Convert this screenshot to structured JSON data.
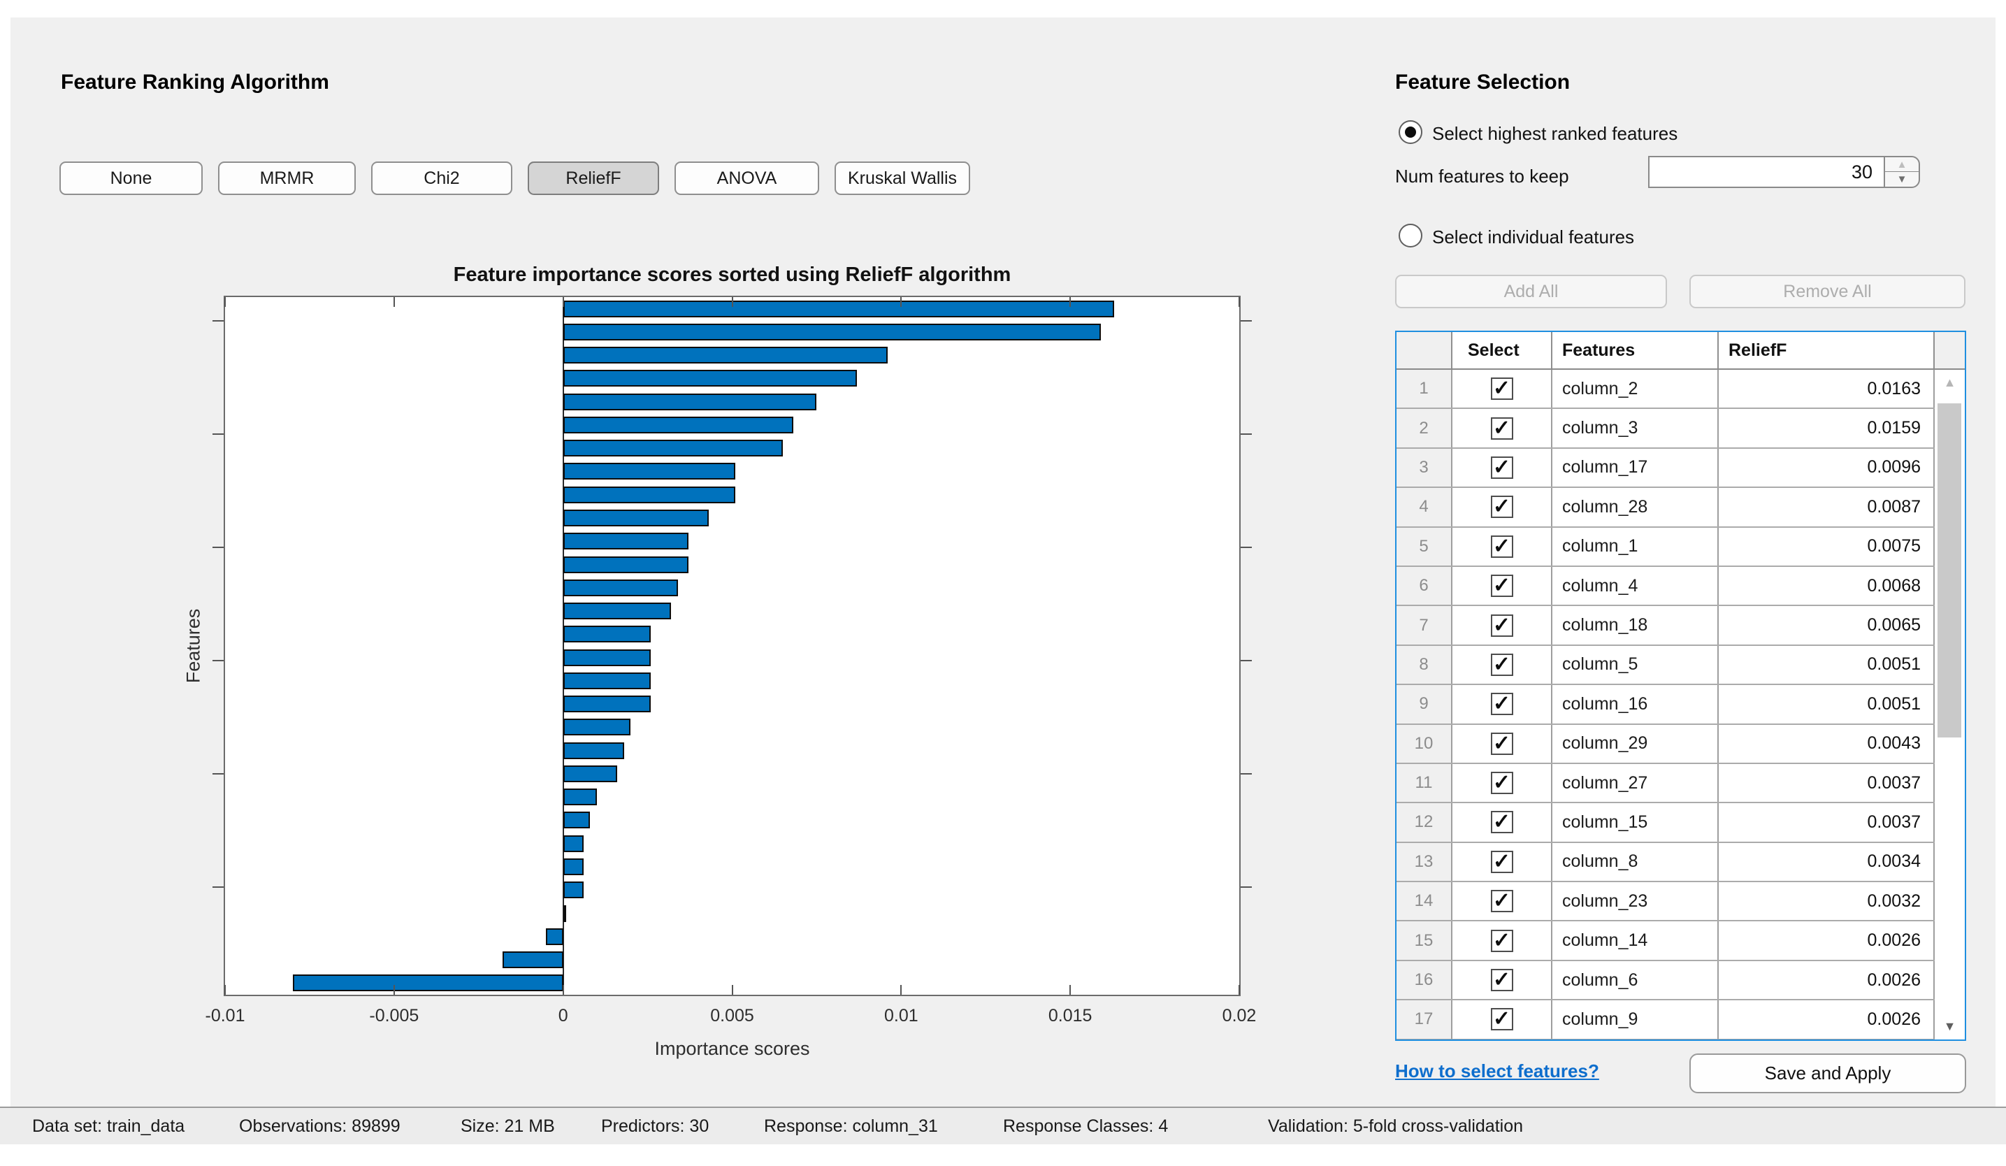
{
  "left": {
    "heading": "Feature Ranking Algorithm",
    "algorithms": [
      "None",
      "MRMR",
      "Chi2",
      "ReliefF",
      "ANOVA",
      "Kruskal Wallis"
    ],
    "selected_algorithm": "ReliefF"
  },
  "chart_data": {
    "type": "bar",
    "orientation": "horizontal",
    "title": "Feature importance scores sorted using ReliefF algorithm",
    "xlabel": "Importance scores",
    "ylabel": "Features",
    "xlim": [
      -0.01,
      0.02
    ],
    "xticks": [
      -0.01,
      -0.005,
      0,
      0.005,
      0.01,
      0.015,
      0.02
    ],
    "xtick_labels": [
      "-0.01",
      "-0.005",
      "0",
      "0.005",
      "0.01",
      "0.015",
      "0.02"
    ],
    "bar_color": "#0072bd",
    "grid": false,
    "values": [
      0.0163,
      0.0159,
      0.0096,
      0.0087,
      0.0075,
      0.0068,
      0.0065,
      0.0051,
      0.0051,
      0.0043,
      0.0037,
      0.0037,
      0.0034,
      0.0032,
      0.0026,
      0.0026,
      0.0026,
      0.0026,
      0.002,
      0.0018,
      0.0016,
      0.001,
      0.0008,
      0.0006,
      0.0006,
      0.0006,
      0.0001,
      -0.0005,
      -0.0018,
      -0.008
    ]
  },
  "right": {
    "heading": "Feature Selection",
    "radio_highest": "Select highest ranked features",
    "num_features_label": "Num features to keep",
    "num_features_value": "30",
    "radio_individual": "Select individual features",
    "add_all": "Add All",
    "remove_all": "Remove All",
    "table": {
      "headers": [
        "",
        "Select",
        "Features",
        "ReliefF"
      ],
      "rows": [
        {
          "n": "1",
          "checked": true,
          "feature": "column_2",
          "score": "0.0163"
        },
        {
          "n": "2",
          "checked": true,
          "feature": "column_3",
          "score": "0.0159"
        },
        {
          "n": "3",
          "checked": true,
          "feature": "column_17",
          "score": "0.0096"
        },
        {
          "n": "4",
          "checked": true,
          "feature": "column_28",
          "score": "0.0087"
        },
        {
          "n": "5",
          "checked": true,
          "feature": "column_1",
          "score": "0.0075"
        },
        {
          "n": "6",
          "checked": true,
          "feature": "column_4",
          "score": "0.0068"
        },
        {
          "n": "7",
          "checked": true,
          "feature": "column_18",
          "score": "0.0065"
        },
        {
          "n": "8",
          "checked": true,
          "feature": "column_5",
          "score": "0.0051"
        },
        {
          "n": "9",
          "checked": true,
          "feature": "column_16",
          "score": "0.0051"
        },
        {
          "n": "10",
          "checked": true,
          "feature": "column_29",
          "score": "0.0043"
        },
        {
          "n": "11",
          "checked": true,
          "feature": "column_27",
          "score": "0.0037"
        },
        {
          "n": "12",
          "checked": true,
          "feature": "column_15",
          "score": "0.0037"
        },
        {
          "n": "13",
          "checked": true,
          "feature": "column_8",
          "score": "0.0034"
        },
        {
          "n": "14",
          "checked": true,
          "feature": "column_23",
          "score": "0.0032"
        },
        {
          "n": "15",
          "checked": true,
          "feature": "column_14",
          "score": "0.0026"
        },
        {
          "n": "16",
          "checked": true,
          "feature": "column_6",
          "score": "0.0026"
        },
        {
          "n": "17",
          "checked": true,
          "feature": "column_9",
          "score": "0.0026"
        }
      ]
    },
    "link": "How to select features?",
    "save_button": "Save and Apply"
  },
  "status_bar": {
    "items": [
      "Data set: train_data",
      "Observations: 89899",
      "Size: 21 MB",
      "Predictors: 30",
      "Response: column_31",
      "Response Classes: 4",
      "Validation: 5-fold cross-validation"
    ]
  },
  "icons": {
    "checkbox_check": "✓",
    "spinner_up": "▲",
    "spinner_down": "▼",
    "scroll_up": "▲",
    "scroll_down": "▼"
  },
  "colors": {
    "bar_blue": "#0072bd",
    "table_focus_border": "#1f8fe0",
    "link_blue": "#0e6ecd",
    "panel_gray": "#f0f0f0"
  }
}
